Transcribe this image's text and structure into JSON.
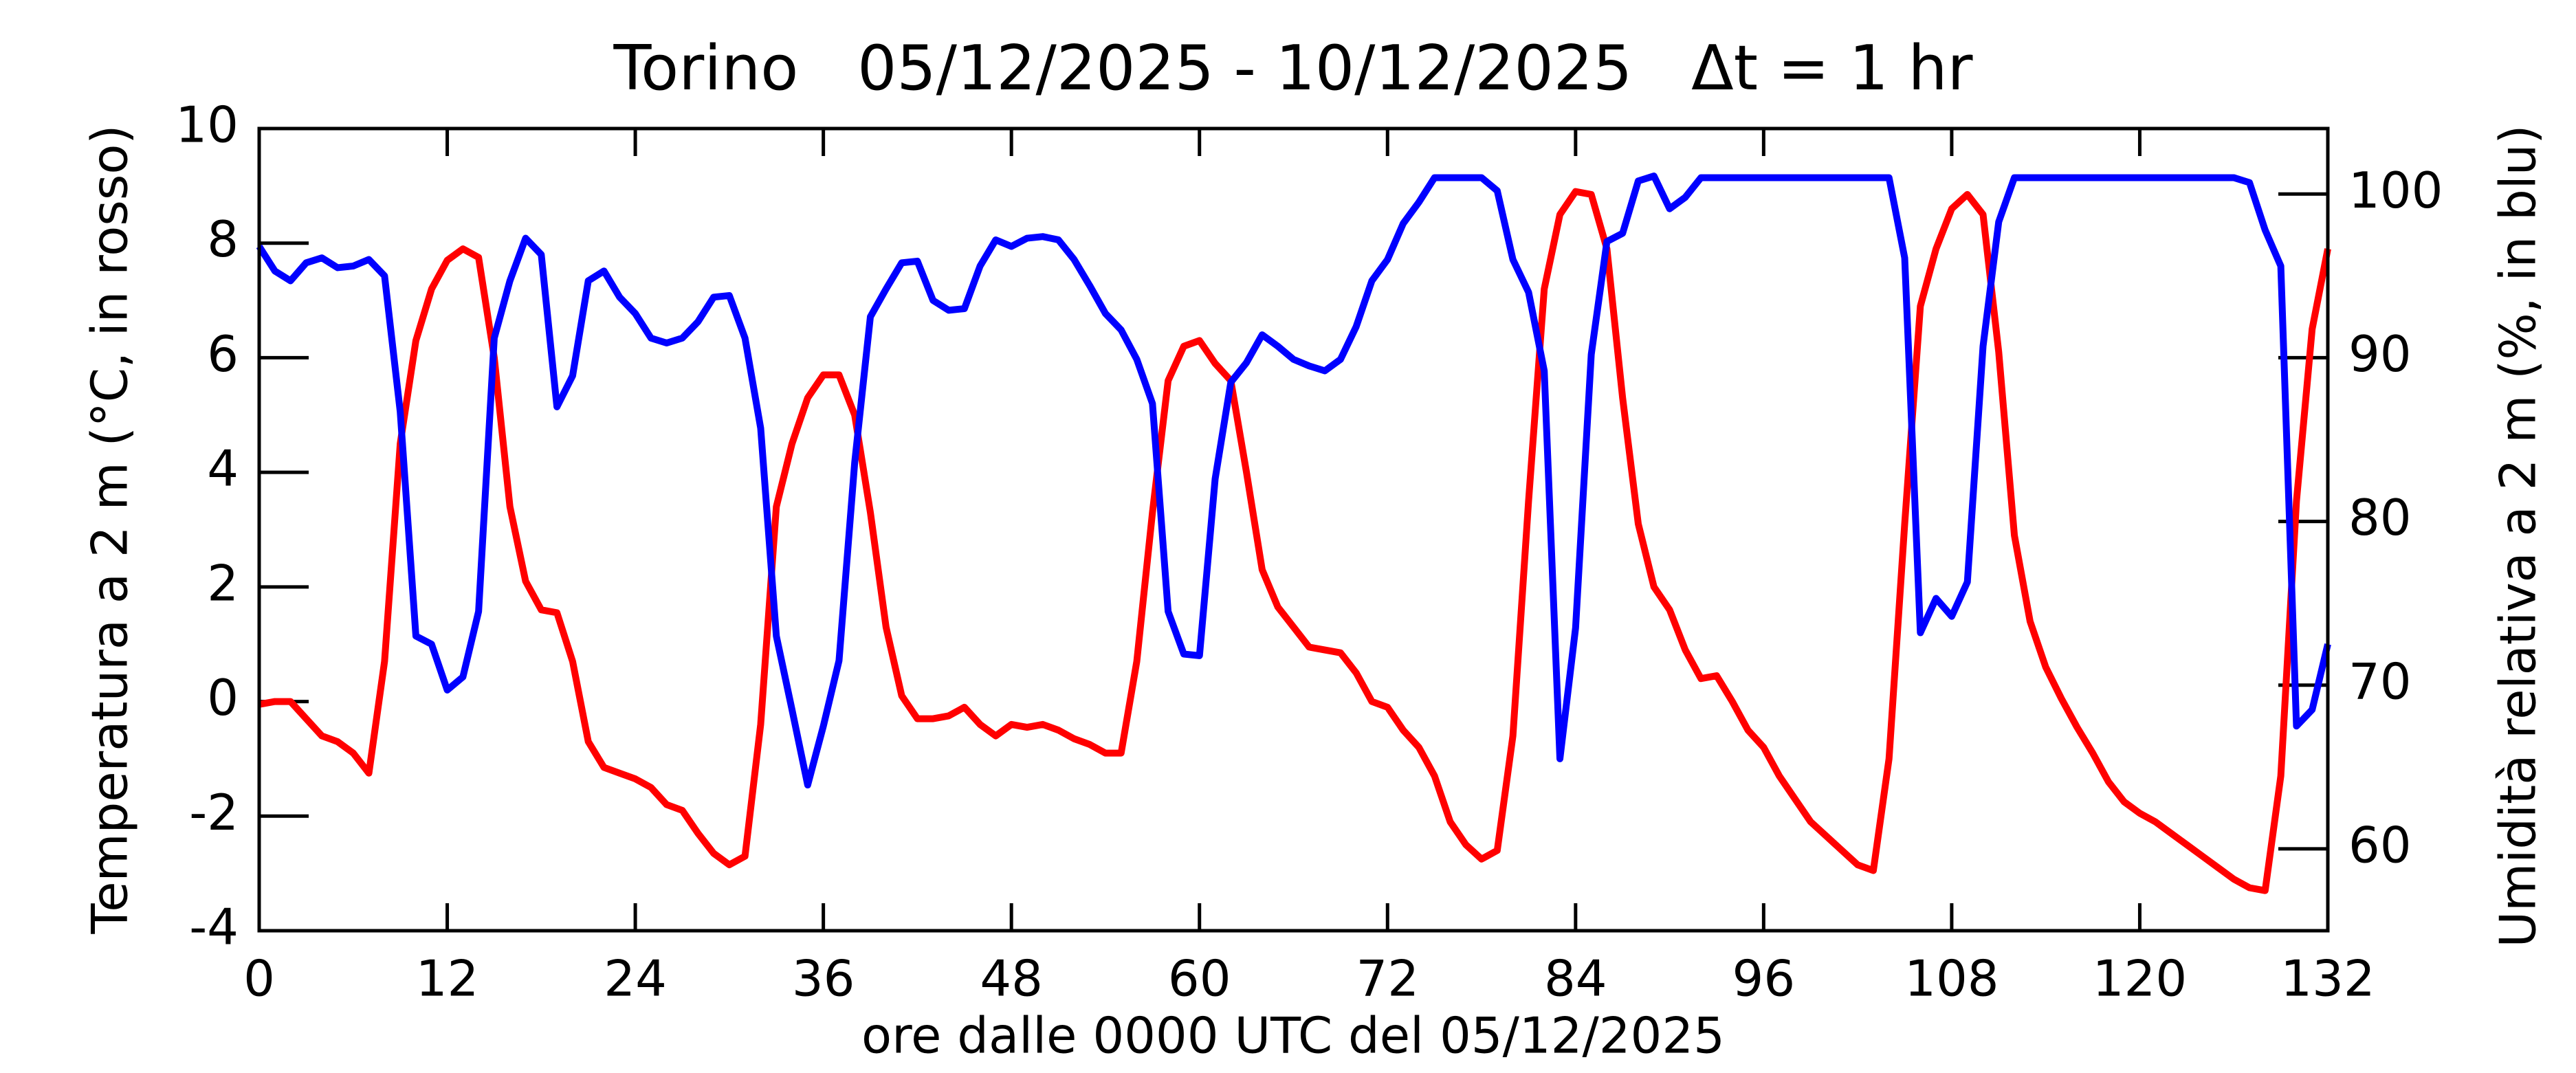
{
  "chart_data": {
    "type": "line",
    "title": "Torino   05/12/2025 - 10/12/2025   Δt = 1 hr",
    "xlabel": "ore dalle 0000 UTC del 05/12/2025",
    "ylabel": "Temperatura a 2 m (°C, in rosso)",
    "y2label": "Umidità relativa a 2 m (%, in blu)",
    "x": [
      0,
      1,
      2,
      3,
      4,
      5,
      6,
      7,
      8,
      9,
      10,
      11,
      12,
      13,
      14,
      15,
      16,
      17,
      18,
      19,
      20,
      21,
      22,
      23,
      24,
      25,
      26,
      27,
      28,
      29,
      30,
      31,
      32,
      33,
      34,
      35,
      36,
      37,
      38,
      39,
      40,
      41,
      42,
      43,
      44,
      45,
      46,
      47,
      48,
      49,
      50,
      51,
      52,
      53,
      54,
      55,
      56,
      57,
      58,
      59,
      60,
      61,
      62,
      63,
      64,
      65,
      66,
      67,
      68,
      69,
      70,
      71,
      72,
      73,
      74,
      75,
      76,
      77,
      78,
      79,
      80,
      81,
      82,
      83,
      84,
      85,
      86,
      87,
      88,
      89,
      90,
      91,
      92,
      93,
      94,
      95,
      96,
      97,
      98,
      99,
      100,
      101,
      102,
      103,
      104,
      105,
      106,
      107,
      108,
      109,
      110,
      111,
      112,
      113,
      114,
      115,
      116,
      117,
      118,
      119,
      120,
      121,
      122,
      123,
      124,
      125,
      126,
      127,
      128,
      129,
      130,
      131,
      132
    ],
    "series": [
      {
        "name": "Temperatura",
        "color": "#ff0000",
        "axis": "y",
        "values": [
          -0.05,
          0.0,
          0.0,
          -0.3,
          -0.6,
          -0.7,
          -0.9,
          -1.25,
          0.7,
          4.5,
          6.3,
          7.2,
          7.7,
          7.9,
          7.75,
          6.0,
          3.4,
          2.1,
          1.6,
          1.55,
          0.7,
          -0.7,
          -1.15,
          -1.25,
          -1.35,
          -1.5,
          -1.8,
          -1.9,
          -2.3,
          -2.65,
          -2.85,
          -2.7,
          -0.4,
          3.4,
          4.5,
          5.3,
          5.7,
          5.7,
          5.0,
          3.3,
          1.3,
          0.1,
          -0.3,
          -0.3,
          -0.25,
          -0.1,
          -0.4,
          -0.6,
          -0.4,
          -0.45,
          -0.4,
          -0.5,
          -0.65,
          -0.75,
          -0.9,
          -0.9,
          0.7,
          3.3,
          5.6,
          6.2,
          6.3,
          5.9,
          5.6,
          4.0,
          2.3,
          1.65,
          1.3,
          0.95,
          0.9,
          0.85,
          0.5,
          0.0,
          -0.1,
          -0.5,
          -0.8,
          -1.3,
          -2.1,
          -2.5,
          -2.75,
          -2.6,
          -0.6,
          3.5,
          7.2,
          8.5,
          8.9,
          8.85,
          7.9,
          5.3,
          3.1,
          2.0,
          1.6,
          0.9,
          0.4,
          0.45,
          0.0,
          -0.5,
          -0.8,
          -1.3,
          -1.7,
          -2.1,
          -2.35,
          -2.6,
          -2.85,
          -2.95,
          -1.0,
          3.1,
          6.9,
          7.9,
          8.6,
          8.85,
          8.5,
          6.1,
          2.9,
          1.4,
          0.6,
          0.05,
          -0.45,
          -0.9,
          -1.4,
          -1.75,
          -1.95,
          -2.1,
          -2.3,
          -2.5,
          -2.7,
          -2.9,
          -3.1,
          -3.25,
          -3.3,
          -1.3,
          3.5,
          6.5,
          7.9
        ]
      },
      {
        "name": "Umidità relativa",
        "color": "#0000ff",
        "axis": "y2",
        "values": [
          96.8,
          95.3,
          94.7,
          95.8,
          96.1,
          95.5,
          95.6,
          96.0,
          95.0,
          86.7,
          73.0,
          72.5,
          69.7,
          70.5,
          74.5,
          91.2,
          94.7,
          97.3,
          96.3,
          87.0,
          88.9,
          94.7,
          95.3,
          93.7,
          92.7,
          91.2,
          90.9,
          91.2,
          92.2,
          93.7,
          93.8,
          91.2,
          85.7,
          73.0,
          68.5,
          63.9,
          67.5,
          71.5,
          83.6,
          92.5,
          94.2,
          95.8,
          95.9,
          93.5,
          92.9,
          93.0,
          95.6,
          97.2,
          96.8,
          97.3,
          97.4,
          97.2,
          96.0,
          94.4,
          92.7,
          91.7,
          89.9,
          87.2,
          74.5,
          71.9,
          71.8,
          82.6,
          88.5,
          89.7,
          91.4,
          90.7,
          89.9,
          89.5,
          89.2,
          89.9,
          91.9,
          94.7,
          96.0,
          98.2,
          99.5,
          101,
          101,
          101,
          101,
          100.2,
          96.0,
          94.0,
          89.2,
          65.5,
          73.5,
          90.2,
          97.1,
          97.6,
          100.8,
          101.1,
          99.1,
          99.8,
          101,
          101,
          101,
          101,
          101,
          101,
          101,
          101,
          101,
          101,
          101,
          101,
          101,
          96.1,
          73.2,
          75.3,
          74.2,
          76.3,
          90.7,
          98.3,
          101,
          101,
          101,
          101,
          101,
          101,
          101,
          101,
          101,
          101,
          101,
          101,
          101,
          101,
          101,
          100.7,
          97.8,
          95.6,
          67.5,
          68.5,
          72.5
        ]
      }
    ],
    "xlim": [
      0,
      132
    ],
    "xticks": [
      0,
      12,
      24,
      36,
      48,
      60,
      72,
      84,
      96,
      108,
      120,
      132
    ],
    "ylim": [
      -4,
      10
    ],
    "yticks": [
      -4,
      -2,
      0,
      2,
      4,
      6,
      8,
      10
    ],
    "y2lim": [
      55,
      104
    ],
    "y2ticks": [
      60,
      70,
      80,
      90,
      100
    ],
    "grid": false
  }
}
